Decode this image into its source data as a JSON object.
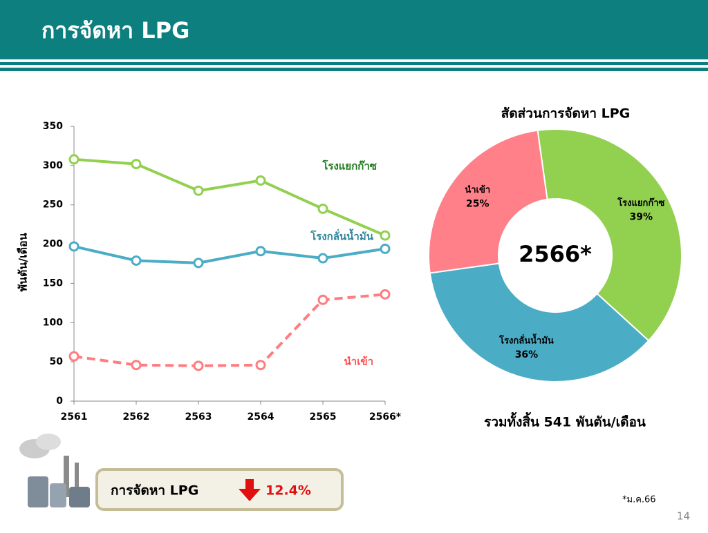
{
  "title": "การจัดหา LPG",
  "chart_data": [
    {
      "type": "line",
      "ylabel": "พันตัน/เดือน",
      "categories": [
        "2561",
        "2562",
        "2563",
        "2564",
        "2565",
        "2566*"
      ],
      "ylim": [
        0,
        350
      ],
      "yticks": [
        0,
        50,
        100,
        150,
        200,
        250,
        300,
        350
      ],
      "series": [
        {
          "name": "โรงแยกก๊าซ",
          "color": "#92d050",
          "label_color": "#1e7b1e",
          "dashed": false,
          "values": [
            308,
            302,
            268,
            281,
            245,
            211
          ]
        },
        {
          "name": "โรงกลั่นน้ำมัน",
          "color": "#4bacc6",
          "label_color": "#31859c",
          "dashed": false,
          "values": [
            197,
            179,
            176,
            191,
            182,
            194
          ]
        },
        {
          "name": "นำเข้า",
          "color": "#ff7c80",
          "label_color": "#ff5050",
          "dashed": true,
          "values": [
            57,
            46,
            45,
            46,
            129,
            136
          ]
        }
      ]
    },
    {
      "type": "pie",
      "donut": true,
      "title": "สัดส่วนการจัดหา LPG",
      "center_label": "2566*",
      "categories": [
        "โรงแยกก๊าซ",
        "โรงกลั่นน้ำมัน",
        "นำเข้า"
      ],
      "values": [
        39,
        36,
        25
      ],
      "value_labels": [
        "39%",
        "36%",
        "25%"
      ],
      "colors": [
        "#92d050",
        "#4bacc6",
        "#ff8088"
      ]
    }
  ],
  "total": "รวมทั้งสิ้น 541 พันตัน/เดือน",
  "summary": {
    "label": "การจัดหา LPG",
    "change": "12.4%"
  },
  "footnote": "*ม.ค.66",
  "page": "14"
}
